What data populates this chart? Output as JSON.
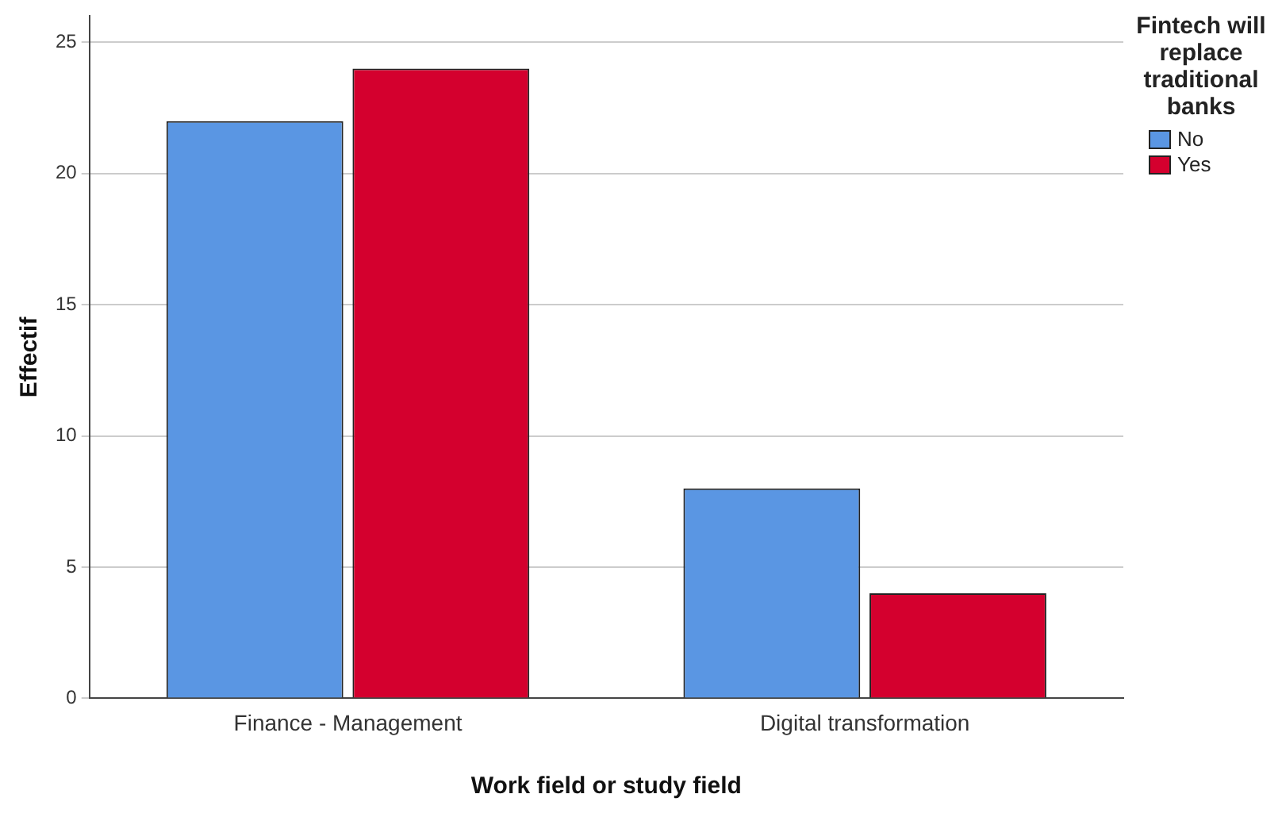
{
  "chart_data": {
    "type": "bar",
    "xlabel": "Work field or study field",
    "ylabel": "Effectif",
    "legend_title": "Fintech will replace traditional banks",
    "categories": [
      "Finance - Management",
      "Digital transformation"
    ],
    "series": [
      {
        "name": "No",
        "color": "#5a96e3",
        "values": [
          22,
          8
        ]
      },
      {
        "name": "Yes",
        "color": "#d4002e",
        "values": [
          24,
          4
        ]
      }
    ],
    "ylim": [
      0,
      26
    ],
    "yticks": [
      0,
      5,
      10,
      15,
      20,
      25
    ],
    "grid": "y",
    "legend": "top right"
  }
}
